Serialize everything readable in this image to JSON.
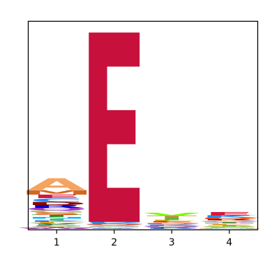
{
  "chart_data": {
    "type": "sequence-logo",
    "title": "",
    "xlabel": "",
    "ylabel": "",
    "x": [
      "1",
      "2",
      "3",
      "4"
    ],
    "yaxis_visible": false,
    "grid": false,
    "positions": [
      {
        "position": "1",
        "letters": [
          {
            "letter": "A",
            "color": "#f4a460",
            "height": 0.055
          },
          {
            "letter": "M",
            "color": "#d2691e",
            "height": 0.022
          },
          {
            "letter": "C",
            "color": "#1e90ff",
            "height": 0.018
          },
          {
            "letter": "E",
            "color": "#dc143c",
            "height": 0.018
          },
          {
            "letter": "R",
            "color": "#0000cd",
            "height": 0.014
          },
          {
            "letter": "D",
            "color": "#8b0000",
            "height": 0.014
          },
          {
            "letter": "G",
            "color": "#bdb76b",
            "height": 0.012
          },
          {
            "letter": "Q",
            "color": "#9932cc",
            "height": 0.012
          },
          {
            "letter": "T",
            "color": "#228b22",
            "height": 0.01
          },
          {
            "letter": "S",
            "color": "#ff4500",
            "height": 0.01
          },
          {
            "letter": "I",
            "color": "#32cd32",
            "height": 0.008
          },
          {
            "letter": "N",
            "color": "#00bfff",
            "height": 0.008
          },
          {
            "letter": "K",
            "color": "#4169e1",
            "height": 0.007
          },
          {
            "letter": "V",
            "color": "#556b2f",
            "height": 0.006
          },
          {
            "letter": "L",
            "color": "#daa520",
            "height": 0.006
          },
          {
            "letter": "P",
            "color": "#ff69b4",
            "height": 0.005
          },
          {
            "letter": "F",
            "color": "#2e8b57",
            "height": 0.005
          },
          {
            "letter": "H",
            "color": "#40e0d0",
            "height": 0.004
          },
          {
            "letter": "Y",
            "color": "#808000",
            "height": 0.004
          },
          {
            "letter": "W",
            "color": "#800080",
            "height": 0.003
          }
        ]
      },
      {
        "position": "2",
        "letters": [
          {
            "letter": "E",
            "color": "#c8103c",
            "height": 0.905
          },
          {
            "letter": "D",
            "color": "#1e90ff",
            "height": 0.005
          },
          {
            "letter": "Q",
            "color": "#dc143c",
            "height": 0.004
          },
          {
            "letter": "K",
            "color": "#4682b4",
            "height": 0.004
          },
          {
            "letter": "N",
            "color": "#87cefa",
            "height": 0.003
          },
          {
            "letter": "A",
            "color": "#f4a460",
            "height": 0.003
          },
          {
            "letter": "S",
            "color": "#ff7f50",
            "height": 0.003
          },
          {
            "letter": "G",
            "color": "#bdb76b",
            "height": 0.003
          },
          {
            "letter": "T",
            "color": "#228b22",
            "height": 0.002
          },
          {
            "letter": "R",
            "color": "#0000cd",
            "height": 0.002
          },
          {
            "letter": "L",
            "color": "#daa520",
            "height": 0.002
          },
          {
            "letter": "V",
            "color": "#9acd32",
            "height": 0.002
          }
        ]
      },
      {
        "position": "3",
        "letters": [
          {
            "letter": "T",
            "color": "#cd853f",
            "height": 0.012
          },
          {
            "letter": "V",
            "color": "#7cfc00",
            "height": 0.016
          },
          {
            "letter": "I",
            "color": "#32cd32",
            "height": 0.008
          },
          {
            "letter": "L",
            "color": "#daa520",
            "height": 0.006
          },
          {
            "letter": "A",
            "color": "#f4a460",
            "height": 0.005
          },
          {
            "letter": "E",
            "color": "#dc143c",
            "height": 0.005
          },
          {
            "letter": "K",
            "color": "#4169e1",
            "height": 0.004
          },
          {
            "letter": "S",
            "color": "#ff7f50",
            "height": 0.004
          },
          {
            "letter": "D",
            "color": "#1e90ff",
            "height": 0.004
          },
          {
            "letter": "R",
            "color": "#0000cd",
            "height": 0.003
          },
          {
            "letter": "N",
            "color": "#87cefa",
            "height": 0.003
          },
          {
            "letter": "Q",
            "color": "#9932cc",
            "height": 0.003
          },
          {
            "letter": "G",
            "color": "#bdb76b",
            "height": 0.003
          },
          {
            "letter": "F",
            "color": "#2e8b57",
            "height": 0.002
          }
        ]
      },
      {
        "position": "4",
        "letters": [
          {
            "letter": "E",
            "color": "#dc143c",
            "height": 0.018
          },
          {
            "letter": "K",
            "color": "#1e90ff",
            "height": 0.01
          },
          {
            "letter": "R",
            "color": "#0000cd",
            "height": 0.006
          },
          {
            "letter": "D",
            "color": "#ff4500",
            "height": 0.006
          },
          {
            "letter": "Q",
            "color": "#ff69b4",
            "height": 0.005
          },
          {
            "letter": "A",
            "color": "#f4a460",
            "height": 0.005
          },
          {
            "letter": "S",
            "color": "#ff7f50",
            "height": 0.004
          },
          {
            "letter": "L",
            "color": "#daa520",
            "height": 0.004
          },
          {
            "letter": "N",
            "color": "#87cefa",
            "height": 0.004
          },
          {
            "letter": "T",
            "color": "#228b22",
            "height": 0.004
          },
          {
            "letter": "G",
            "color": "#bdb76b",
            "height": 0.003
          },
          {
            "letter": "V",
            "color": "#9acd32",
            "height": 0.003
          },
          {
            "letter": "I",
            "color": "#32cd32",
            "height": 0.003
          },
          {
            "letter": "H",
            "color": "#40e0d0",
            "height": 0.002
          },
          {
            "letter": "M",
            "color": "#d2691e",
            "height": 0.002
          },
          {
            "letter": "F",
            "color": "#2e8b57",
            "height": 0.002
          }
        ]
      }
    ]
  }
}
